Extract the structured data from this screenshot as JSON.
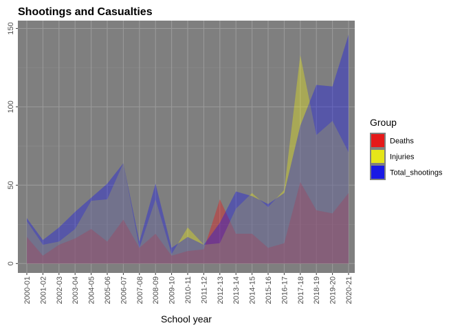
{
  "chart_data": {
    "type": "area",
    "title": "Shootings and Casualties",
    "xlabel": "School year",
    "ylabel": "",
    "ylim": [
      -6,
      155
    ],
    "yticks": [
      0,
      50,
      100,
      150
    ],
    "grid": true,
    "legend_position": "right",
    "legend_title": "Group",
    "categories": [
      "2000-01",
      "2001-02",
      "2002-03",
      "2003-04",
      "2004-05",
      "2005-06",
      "2006-07",
      "2007-08",
      "2008-09",
      "2009-10",
      "2010-11",
      "2011-12",
      "2012-13",
      "2013-14",
      "2014-15",
      "2015-16",
      "2016-17",
      "2017-18",
      "2018-19",
      "2019-20",
      "2020-21"
    ],
    "series": [
      {
        "name": "Deaths",
        "color": "#FF0000",
        "values": [
          17,
          5,
          12,
          16,
          22,
          14,
          28,
          10,
          19,
          5,
          8,
          9,
          41,
          19,
          19,
          10,
          13,
          52,
          34,
          32,
          45
        ]
      },
      {
        "name": "Injuries",
        "color": "#FFFF00",
        "values": [
          27,
          12,
          14,
          22,
          40,
          41,
          64,
          10,
          41,
          6,
          23,
          12,
          13,
          35,
          45,
          36,
          47,
          133,
          82,
          91,
          71
        ]
      },
      {
        "name": "Total_shootings",
        "color": "#0000FF",
        "values": [
          29,
          15,
          23,
          33,
          42,
          51,
          64,
          14,
          51,
          10,
          17,
          12,
          26,
          46,
          43,
          38,
          45,
          88,
          114,
          113,
          146
        ]
      }
    ]
  }
}
